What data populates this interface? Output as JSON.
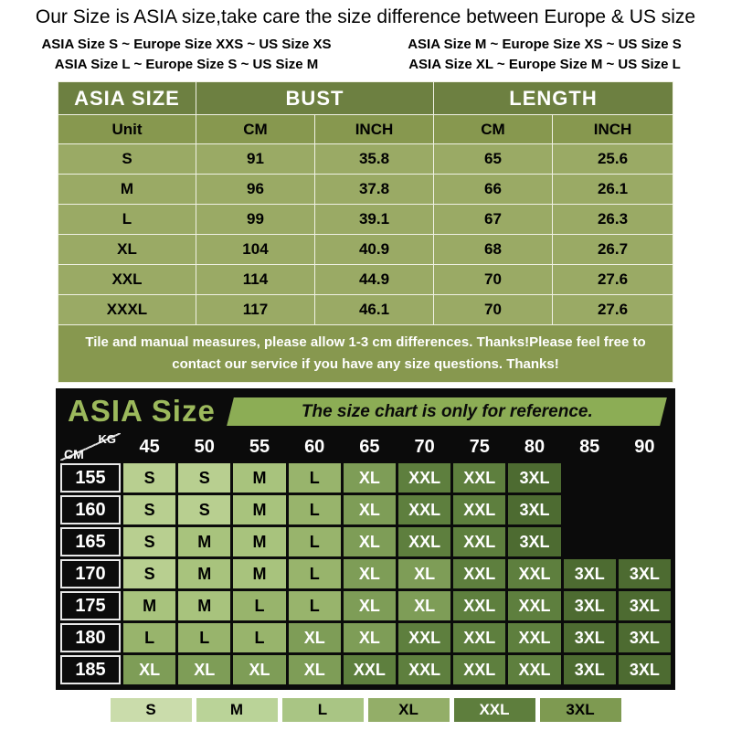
{
  "title": "Our Size is ASIA size,take care the size difference between Europe & US size",
  "equivalence": [
    "ASIA Size S  ~  Europe Size XXS  ~  US Size XS",
    "ASIA Size M  ~  Europe Size XS  ~  US Size S",
    "ASIA Size L ~  Europe Size S  ~  US Size M",
    "ASIA Size XL ~  Europe Size M  ~  US Size L"
  ],
  "size_table": {
    "header_size": "ASIA SIZE",
    "header_bust": "BUST",
    "header_length": "LENGTH",
    "unit_row": [
      "Unit",
      "CM",
      "INCH",
      "CM",
      "INCH"
    ],
    "rows": [
      [
        "S",
        "91",
        "35.8",
        "65",
        "25.6"
      ],
      [
        "M",
        "96",
        "37.8",
        "66",
        "26.1"
      ],
      [
        "L",
        "99",
        "39.1",
        "67",
        "26.3"
      ],
      [
        "XL",
        "104",
        "40.9",
        "68",
        "26.7"
      ],
      [
        "XXL",
        "114",
        "44.9",
        "70",
        "27.6"
      ],
      [
        "XXXL",
        "117",
        "46.1",
        "70",
        "27.6"
      ]
    ],
    "note": "Tile and manual measures, please allow 1-3 cm differences. Thanks!Please feel free to contact our service if you have any size questions. Thanks!"
  },
  "matrix": {
    "title": "ASIA Size",
    "banner": "The size chart is only for reference.",
    "weight_unit": "KG",
    "height_unit": "CM",
    "weights": [
      "45",
      "50",
      "55",
      "60",
      "65",
      "70",
      "75",
      "80",
      "85",
      "90"
    ],
    "heights": [
      "155",
      "160",
      "165",
      "170",
      "175",
      "180",
      "185"
    ],
    "cells": [
      [
        "S",
        "S",
        "M",
        "L",
        "XL",
        "XXL",
        "XXL",
        "3XL",
        "",
        ""
      ],
      [
        "S",
        "S",
        "M",
        "L",
        "XL",
        "XXL",
        "XXL",
        "3XL",
        "",
        ""
      ],
      [
        "S",
        "M",
        "M",
        "L",
        "XL",
        "XXL",
        "XXL",
        "3XL",
        "",
        ""
      ],
      [
        "S",
        "M",
        "M",
        "L",
        "XL",
        "XL",
        "XXL",
        "XXL",
        "3XL",
        "3XL"
      ],
      [
        "M",
        "M",
        "L",
        "L",
        "XL",
        "XL",
        "XXL",
        "XXL",
        "3XL",
        "3XL"
      ],
      [
        "L",
        "L",
        "L",
        "XL",
        "XL",
        "XXL",
        "XXL",
        "XXL",
        "3XL",
        "3XL"
      ],
      [
        "XL",
        "XL",
        "XL",
        "XL",
        "XXL",
        "XXL",
        "XXL",
        "XXL",
        "3XL",
        "3XL"
      ]
    ],
    "size_colors": {
      "S": {
        "bg": "#b8cf90",
        "fg": "#000000"
      },
      "M": {
        "bg": "#a8c37d",
        "fg": "#000000"
      },
      "L": {
        "bg": "#98b46c",
        "fg": "#000000"
      },
      "XL": {
        "bg": "#7e9d57",
        "fg": "#ffffff"
      },
      "XXL": {
        "bg": "#5e7f3e",
        "fg": "#ffffff"
      },
      "3XL": {
        "bg": "#4d6b31",
        "fg": "#ffffff"
      }
    },
    "legend": [
      "S",
      "M",
      "L",
      "XL",
      "XXL",
      "3XL"
    ],
    "legend_colors": [
      {
        "bg": "#cadcab",
        "fg": "#000000"
      },
      {
        "bg": "#bad398",
        "fg": "#000000"
      },
      {
        "bg": "#a9c584",
        "fg": "#000000"
      },
      {
        "bg": "#93ae68",
        "fg": "#000000"
      },
      {
        "bg": "#5e7e3d",
        "fg": "#ffffff"
      },
      {
        "bg": "#7e9a51",
        "fg": "#000000"
      }
    ]
  },
  "colors": {
    "table_header_green": "#6d8041",
    "table_unit_green": "#87984f",
    "table_row_green": "#9aaa65",
    "chart_background": "#0b0b0b",
    "chart_title_green": "#9cb95c",
    "banner_green": "#8cad55"
  },
  "chart_data": [
    {
      "type": "table",
      "title": "ASIA SIZE — BUST / LENGTH measurements",
      "columns": [
        "ASIA SIZE",
        "BUST CM",
        "BUST INCH",
        "LENGTH CM",
        "LENGTH INCH"
      ],
      "rows": [
        [
          "S",
          91,
          35.8,
          65,
          25.6
        ],
        [
          "M",
          96,
          37.8,
          66,
          26.1
        ],
        [
          "L",
          99,
          39.1,
          67,
          26.3
        ],
        [
          "XL",
          104,
          40.9,
          68,
          26.7
        ],
        [
          "XXL",
          114,
          44.9,
          70,
          27.6
        ],
        [
          "XXXL",
          117,
          46.1,
          70,
          27.6
        ]
      ]
    },
    {
      "type": "table",
      "title": "ASIA Size — recommended size by height (CM) and weight (KG)",
      "columns": [
        "CM\\KG",
        "45",
        "50",
        "55",
        "60",
        "65",
        "70",
        "75",
        "80",
        "85",
        "90"
      ],
      "rows": [
        [
          "155",
          "S",
          "S",
          "M",
          "L",
          "XL",
          "XXL",
          "XXL",
          "3XL",
          "",
          ""
        ],
        [
          "160",
          "S",
          "S",
          "M",
          "L",
          "XL",
          "XXL",
          "XXL",
          "3XL",
          "",
          ""
        ],
        [
          "165",
          "S",
          "M",
          "M",
          "L",
          "XL",
          "XXL",
          "XXL",
          "3XL",
          "",
          ""
        ],
        [
          "170",
          "S",
          "M",
          "M",
          "L",
          "XL",
          "XL",
          "XXL",
          "XXL",
          "3XL",
          "3XL"
        ],
        [
          "175",
          "M",
          "M",
          "L",
          "L",
          "XL",
          "XL",
          "XXL",
          "XXL",
          "3XL",
          "3XL"
        ],
        [
          "180",
          "L",
          "L",
          "L",
          "XL",
          "XL",
          "XXL",
          "XXL",
          "XXL",
          "3XL",
          "3XL"
        ],
        [
          "185",
          "XL",
          "XL",
          "XL",
          "XL",
          "XXL",
          "XXL",
          "XXL",
          "XXL",
          "3XL",
          "3XL"
        ]
      ]
    }
  ]
}
